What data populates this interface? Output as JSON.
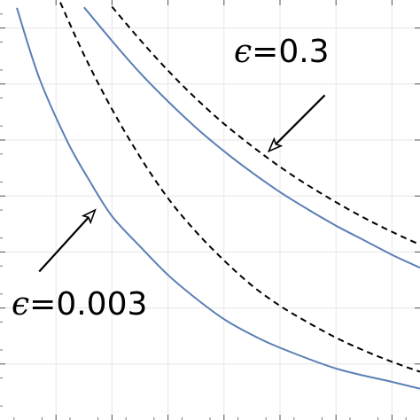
{
  "chart_data": {
    "type": "line",
    "title": "",
    "xlabel": "",
    "ylabel": "",
    "grid": true,
    "legend": "none",
    "x_tick_labels": [],
    "y_tick_labels": [],
    "series": [
      {
        "name": "",
        "style": "solid",
        "color": "#5b7fb5",
        "x": [
          0.3,
          0.7,
          1.2,
          1.6,
          2.0,
          2.5,
          3.0,
          3.5,
          4.0,
          4.5,
          5.0,
          6.0,
          7.0,
          7.5
        ],
        "y": [
          7.36,
          6.11,
          4.98,
          4.27,
          3.64,
          3.1,
          2.59,
          2.17,
          1.8,
          1.52,
          1.29,
          0.92,
          0.68,
          0.56
        ]
      },
      {
        "name": "",
        "style": "dashed",
        "color": "#000000",
        "x": [
          1.0,
          1.5,
          2.0,
          2.5,
          3.0,
          3.5,
          4.0,
          4.5,
          5.0,
          5.5,
          6.0,
          6.5,
          7.0,
          7.5
        ],
        "y": [
          7.63,
          6.52,
          5.55,
          4.7,
          3.96,
          3.36,
          2.85,
          2.4,
          2.04,
          1.74,
          1.47,
          1.24,
          1.04,
          0.86
        ]
      },
      {
        "name": "",
        "style": "solid",
        "color": "#5b7fb5",
        "x": [
          1.5,
          2.0,
          2.5,
          3.0,
          3.5,
          4.0,
          4.5,
          5.0,
          5.5,
          6.0,
          6.5,
          7.0,
          7.5
        ],
        "y": [
          7.37,
          6.77,
          6.2,
          5.69,
          5.22,
          4.8,
          4.42,
          4.07,
          3.76,
          3.47,
          3.21,
          2.95,
          2.72
        ]
      },
      {
        "name": "",
        "style": "dashed",
        "color": "#000000",
        "x": [
          2.0,
          2.5,
          3.0,
          3.5,
          4.0,
          4.5,
          5.0,
          5.5,
          6.0,
          6.5,
          7.0,
          7.5
        ],
        "y": [
          7.38,
          6.79,
          6.24,
          5.74,
          5.29,
          4.89,
          4.52,
          4.19,
          3.89,
          3.61,
          3.36,
          3.13
        ]
      }
    ],
    "annotations": [
      {
        "eps": "ϵ",
        "text": "=0.3",
        "arrow_from": [
          5.8,
          5.8
        ],
        "arrow_to": [
          4.8,
          4.8
        ]
      },
      {
        "eps": "ϵ",
        "text": "=0.003",
        "arrow_from": [
          0.7,
          2.65
        ],
        "arrow_to": [
          1.7,
          3.75
        ]
      }
    ],
    "xlim": [
      0,
      7.5
    ],
    "ylim": [
      0,
      7.5
    ]
  }
}
